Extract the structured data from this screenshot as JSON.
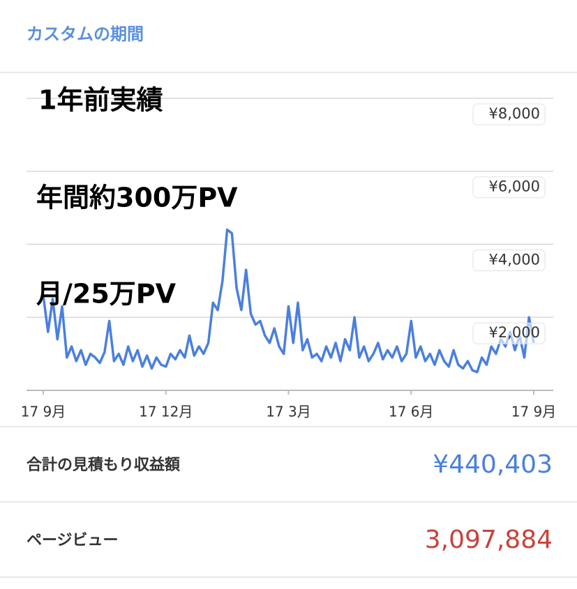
{
  "header": {
    "title": "カスタムの期間"
  },
  "annotations": [
    "1年前実績",
    "年間約300万PV",
    "月/25万PV"
  ],
  "chart_data": {
    "type": "line",
    "categories": [
      "17 9月",
      null,
      null,
      null,
      null,
      null,
      null,
      null,
      null,
      null,
      null,
      null,
      null,
      null,
      null,
      null,
      null,
      null,
      null,
      null,
      null,
      null,
      null,
      null,
      null,
      null,
      "17 12月",
      null,
      null,
      null,
      null,
      null,
      null,
      null,
      null,
      null,
      null,
      null,
      null,
      null,
      null,
      null,
      null,
      null,
      null,
      null,
      null,
      null,
      null,
      null,
      null,
      null,
      "17 3月",
      null,
      null,
      null,
      null,
      null,
      null,
      null,
      null,
      null,
      null,
      null,
      null,
      null,
      null,
      null,
      null,
      null,
      null,
      null,
      null,
      null,
      null,
      null,
      null,
      null,
      "17 6月",
      null,
      null,
      null,
      null,
      null,
      null,
      null,
      null,
      null,
      null,
      null,
      null,
      null,
      null,
      null,
      null,
      null,
      null,
      null,
      null,
      null,
      null,
      null,
      null,
      null,
      "17 9月"
    ],
    "series": [
      {
        "color": "#4a7fe0",
        "values": [
          2600,
          1600,
          2500,
          1400,
          2300,
          900,
          1200,
          800,
          1100,
          700,
          1000,
          900,
          750,
          1050,
          1900,
          800,
          1000,
          700,
          1200,
          800,
          1100,
          650,
          950,
          600,
          900,
          700,
          650,
          1000,
          850,
          1100,
          900,
          1500,
          950,
          1200,
          1000,
          1300,
          2400,
          2200,
          3000,
          4400,
          4300,
          2800,
          2200,
          3300,
          2100,
          1800,
          1900,
          1500,
          1300,
          1700,
          1200,
          1000,
          2300,
          1300,
          2400,
          1100,
          1400,
          900,
          1000,
          800,
          1200,
          900,
          1300,
          800,
          1400,
          1100,
          2000,
          900,
          1200,
          800,
          1000,
          1300,
          850,
          1100,
          900,
          1200,
          800,
          1000,
          1900,
          900,
          1200,
          800,
          1000,
          700,
          1100,
          800,
          650,
          1100,
          700,
          600,
          800,
          550,
          500,
          900,
          700,
          1200,
          1000,
          1400,
          1200,
          1600,
          1100,
          1500,
          900,
          2000,
          1300
        ]
      }
    ],
    "ylim": [
      0,
      8400
    ],
    "yticks": [
      {
        "value": 2000,
        "label": "¥2,000"
      },
      {
        "value": 4000,
        "label": "¥4,000"
      },
      {
        "value": 6000,
        "label": "¥6,000"
      },
      {
        "value": 8000,
        "label": "¥8,000"
      }
    ],
    "grid": true
  },
  "summary": [
    {
      "label": "合計の見積もり収益額",
      "value": "¥440,403",
      "color": "#4a7fe0"
    },
    {
      "label": "ページビュー",
      "value": "3,097,884",
      "color": "#c9413a"
    }
  ]
}
